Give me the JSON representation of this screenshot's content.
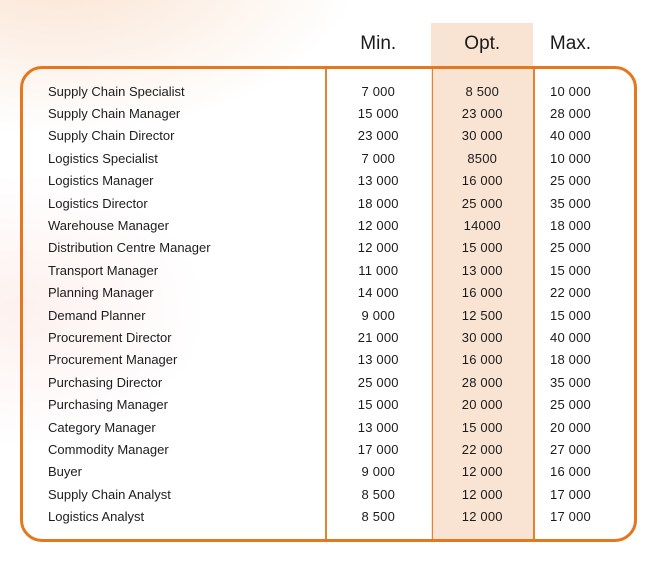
{
  "colors": {
    "accent_border": "#E5771E",
    "column_separator": "#E5822F",
    "opt_highlight": "#F9E4D3",
    "background_tint": "#FAE1CE",
    "text": "#1E1E1E"
  },
  "header": {
    "columns": [
      {
        "key": "min",
        "label": "Min."
      },
      {
        "key": "opt",
        "label": "Opt."
      },
      {
        "key": "max",
        "label": "Max."
      }
    ]
  },
  "table": {
    "rows": [
      {
        "label": "Supply Chain Specialist",
        "min": "7 000",
        "opt": "8 500",
        "max": "10 000"
      },
      {
        "label": "Supply Chain Manager",
        "min": "15 000",
        "opt": "23 000",
        "max": "28 000"
      },
      {
        "label": "Supply Chain Director",
        "min": "23 000",
        "opt": "30 000",
        "max": "40 000"
      },
      {
        "label": "Logistics Specialist",
        "min": "7 000",
        "opt": "8500",
        "max": "10 000"
      },
      {
        "label": "Logistics Manager",
        "min": "13 000",
        "opt": "16 000",
        "max": "25 000"
      },
      {
        "label": "Logistics Director",
        "min": "18 000",
        "opt": "25 000",
        "max": "35 000"
      },
      {
        "label": "Warehouse Manager",
        "min": "12 000",
        "opt": "14000",
        "max": "18 000"
      },
      {
        "label": "Distribution Centre Manager",
        "min": "12 000",
        "opt": "15 000",
        "max": "25 000"
      },
      {
        "label": "Transport Manager",
        "min": "11 000",
        "opt": "13 000",
        "max": "15 000"
      },
      {
        "label": "Planning Manager",
        "min": "14 000",
        "opt": "16 000",
        "max": "22 000"
      },
      {
        "label": "Demand Planner",
        "min": "9 000",
        "opt": "12 500",
        "max": "15 000"
      },
      {
        "label": "Procurement Director",
        "min": "21 000",
        "opt": "30 000",
        "max": "40 000"
      },
      {
        "label": "Procurement Manager",
        "min": "13 000",
        "opt": "16 000",
        "max": "18 000"
      },
      {
        "label": "Purchasing Director",
        "min": "25 000",
        "opt": "28 000",
        "max": "35 000"
      },
      {
        "label": "Purchasing Manager",
        "min": "15 000",
        "opt": "20 000",
        "max": "25 000"
      },
      {
        "label": "Category Manager",
        "min": "13 000",
        "opt": "15 000",
        "max": "20 000"
      },
      {
        "label": "Commodity Manager",
        "min": "17 000",
        "opt": "22 000",
        "max": "27 000"
      },
      {
        "label": "Buyer",
        "min": "9 000",
        "opt": "12 000",
        "max": "16 000"
      },
      {
        "label": "Supply Chain Analyst",
        "min": "8 500",
        "opt": "12 000",
        "max": "17 000"
      },
      {
        "label": "Logistics Analyst",
        "min": "8 500",
        "opt": "12 000",
        "max": "17 000"
      }
    ]
  }
}
